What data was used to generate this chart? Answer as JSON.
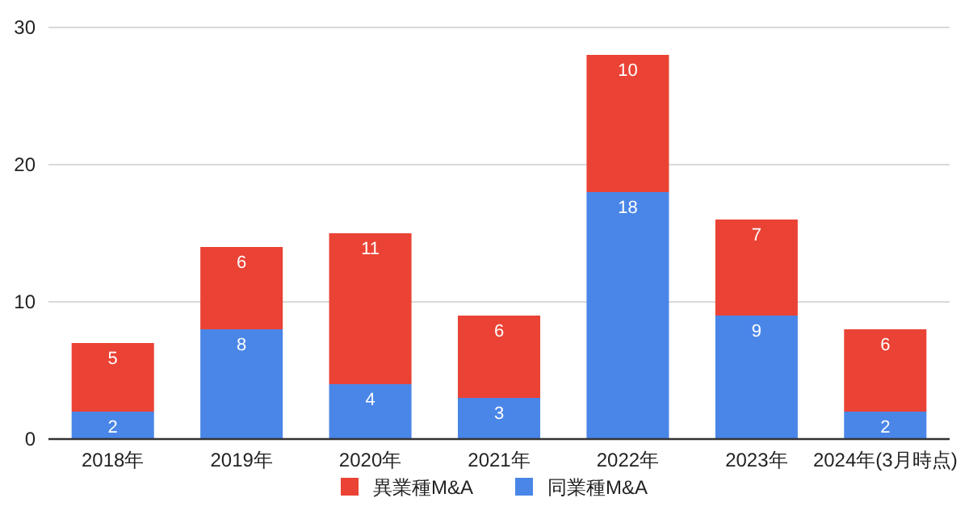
{
  "chart_data": {
    "type": "bar",
    "stacked": true,
    "categories": [
      "2018年",
      "2019年",
      "2020年",
      "2021年",
      "2022年",
      "2023年",
      "2024年(3月時点)"
    ],
    "series": [
      {
        "name": "同業種M&A",
        "color": "#4a86e8",
        "values": [
          2,
          8,
          4,
          3,
          18,
          9,
          2
        ]
      },
      {
        "name": "異業種M&A",
        "color": "#ea4335",
        "values": [
          5,
          6,
          11,
          6,
          10,
          7,
          6
        ]
      }
    ],
    "ylim": [
      0,
      30
    ],
    "yticks": [
      0,
      10,
      20,
      30
    ],
    "grid": "y",
    "legend": "bottom",
    "data_labels": true
  }
}
